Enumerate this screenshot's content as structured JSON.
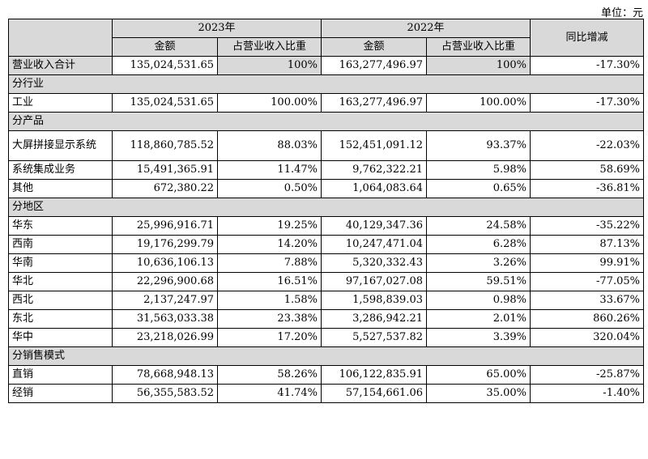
{
  "unit": "单位：元",
  "header": {
    "year1": "2023年",
    "year2": "2022年",
    "yoy": "同比增减",
    "amount": "金额",
    "ratio": "占营业收入比重"
  },
  "total": {
    "label": "营业收入合计",
    "a1": "135,024,531.65",
    "r1": "100%",
    "a2": "163,277,496.97",
    "r2": "100%",
    "yoy": "-17.30%"
  },
  "sections": [
    {
      "title": "分行业",
      "rows": [
        {
          "label": "工业",
          "a1": "135,024,531.65",
          "r1": "100.00%",
          "a2": "163,277,496.97",
          "r2": "100.00%",
          "yoy": "-17.30%"
        }
      ]
    },
    {
      "title": "分产品",
      "rows": [
        {
          "label": "大屏拼接显示系统",
          "a1": "118,860,785.52",
          "r1": "88.03%",
          "a2": "152,451,091.12",
          "r2": "93.37%",
          "yoy": "-22.03%"
        },
        {
          "label": "系统集成业务",
          "a1": "15,491,365.91",
          "r1": "11.47%",
          "a2": "9,762,322.21",
          "r2": "5.98%",
          "yoy": "58.69%"
        },
        {
          "label": "其他",
          "a1": "672,380.22",
          "r1": "0.50%",
          "a2": "1,064,083.64",
          "r2": "0.65%",
          "yoy": "-36.81%"
        }
      ]
    },
    {
      "title": "分地区",
      "rows": [
        {
          "label": "华东",
          "a1": "25,996,916.71",
          "r1": "19.25%",
          "a2": "40,129,347.36",
          "r2": "24.58%",
          "yoy": "-35.22%"
        },
        {
          "label": "西南",
          "a1": "19,176,299.79",
          "r1": "14.20%",
          "a2": "10,247,471.04",
          "r2": "6.28%",
          "yoy": "87.13%"
        },
        {
          "label": "华南",
          "a1": "10,636,106.13",
          "r1": "7.88%",
          "a2": "5,320,332.43",
          "r2": "3.26%",
          "yoy": "99.91%"
        },
        {
          "label": "华北",
          "a1": "22,296,900.68",
          "r1": "16.51%",
          "a2": "97,167,027.08",
          "r2": "59.51%",
          "yoy": "-77.05%"
        },
        {
          "label": "西北",
          "a1": "2,137,247.97",
          "r1": "1.58%",
          "a2": "1,598,839.03",
          "r2": "0.98%",
          "yoy": "33.67%"
        },
        {
          "label": "东北",
          "a1": "31,563,033.38",
          "r1": "23.38%",
          "a2": "3,286,942.21",
          "r2": "2.01%",
          "yoy": "860.26%"
        },
        {
          "label": "华中",
          "a1": "23,218,026.99",
          "r1": "17.20%",
          "a2": "5,527,537.82",
          "r2": "3.39%",
          "yoy": "320.04%"
        }
      ]
    },
    {
      "title": "分销售模式",
      "rows": [
        {
          "label": "直销",
          "a1": "78,668,948.13",
          "r1": "58.26%",
          "a2": "106,122,835.91",
          "r2": "65.00%",
          "yoy": "-25.87%"
        },
        {
          "label": "经销",
          "a1": "56,355,583.52",
          "r1": "41.74%",
          "a2": "57,154,661.06",
          "r2": "35.00%",
          "yoy": "-1.40%"
        }
      ]
    }
  ]
}
